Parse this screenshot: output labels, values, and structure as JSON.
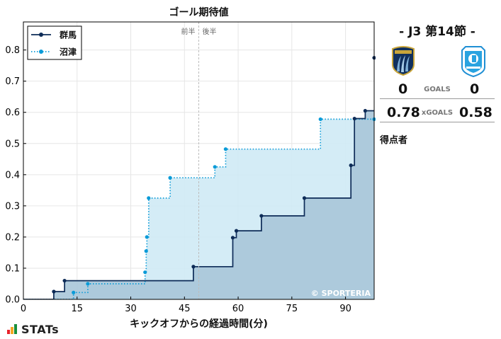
{
  "chart_data": {
    "type": "line",
    "step": true,
    "title": "ゴール期待値",
    "xlabel": "キックオフからの経過時間(分)",
    "ylabel": "",
    "xlim": [
      0,
      98
    ],
    "ylim": [
      0,
      0.89
    ],
    "xticks": [
      0,
      15,
      30,
      45,
      60,
      75,
      90
    ],
    "yticks": [
      0.0,
      0.1,
      0.2,
      0.3,
      0.4,
      0.5,
      0.6,
      0.7,
      0.8
    ],
    "ytick_labels": [
      "0.0",
      "0.1",
      "0.2",
      "0.3",
      "0.4",
      "0.5",
      "0.6",
      "0.7",
      "0.8"
    ],
    "grid": true,
    "legend_position": "top-left",
    "halftime_minute": 49,
    "halftime_labels": [
      "前半",
      "後半"
    ],
    "watermark": "© SPORTERIA",
    "series": [
      {
        "name": "群馬",
        "color": "#0d2b57",
        "fill": "#a9c6d9",
        "line_style": "solid",
        "x": [
          8.5,
          11.5,
          47.5,
          58.5,
          59.5,
          66.5,
          78.5,
          91.5,
          92.5,
          95.5,
          98.5
        ],
        "y": [
          0.025,
          0.06,
          0.105,
          0.198,
          0.22,
          0.268,
          0.325,
          0.43,
          0.58,
          0.605,
          0.775
        ]
      },
      {
        "name": "沼津",
        "color": "#0a9bd8",
        "fill": "#cfeaf5",
        "line_style": "dotted",
        "x": [
          14,
          18,
          34,
          34.3,
          34.5,
          35,
          41,
          53.5,
          56.5,
          83,
          98
        ],
        "y": [
          0.022,
          0.05,
          0.087,
          0.155,
          0.2,
          0.325,
          0.39,
          0.425,
          0.482,
          0.578,
          0.578
        ]
      }
    ]
  },
  "panel": {
    "round": "-  J3 第14節  -",
    "home_goals": "0",
    "away_goals": "0",
    "goals_label": "GOALS",
    "home_xg": "0.78",
    "away_xg": "0.58",
    "xg_label": "xGOALS",
    "scorers_label": "得点者",
    "home_logo": "gunma-crest",
    "away_logo": "numazu-crest"
  },
  "footer": {
    "brand": "STATs"
  },
  "colors": {
    "bar1": "#e8232a",
    "bar2": "#f5a623",
    "bar3": "#1a8f3c"
  }
}
